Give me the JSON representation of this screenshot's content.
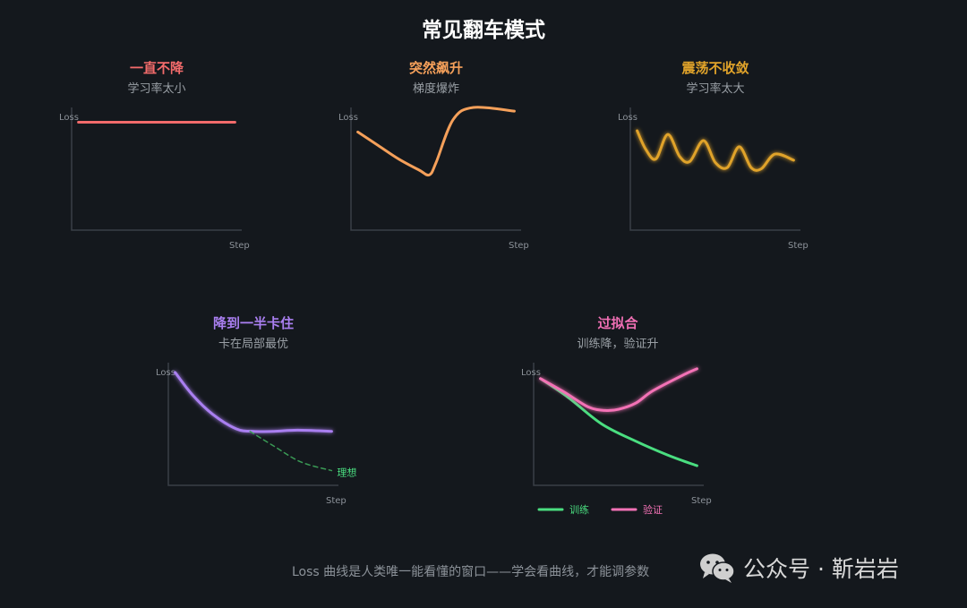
{
  "title": "常见翻车模式",
  "footer": "Loss 曲线是人类唯一能看懂的窗口——学会看曲线，才能调参数",
  "watermark": {
    "icon": "wechat-icon",
    "text": "公众号 · 靳岩岩"
  },
  "axis": {
    "y_label": "Loss",
    "x_label": "Step"
  },
  "chart_data": [
    {
      "type": "line",
      "title": "一直不降",
      "subtitle": "学习率太小",
      "title_color": "#f26b6b",
      "xlabel": "Step",
      "ylabel": "Loss",
      "xlim": [
        0,
        10
      ],
      "ylim": [
        0,
        10
      ],
      "series": [
        {
          "color": "#f26b6b",
          "glow": false,
          "dashed": false,
          "x": [
            0.4,
            9.6
          ],
          "y": [
            8.8,
            8.8
          ]
        }
      ]
    },
    {
      "type": "line",
      "title": "突然飙升",
      "subtitle": "梯度爆炸",
      "title_color": "#f5a05a",
      "xlabel": "Step",
      "ylabel": "Loss",
      "xlim": [
        0,
        10
      ],
      "ylim": [
        0,
        10
      ],
      "series": [
        {
          "color": "#f5a05a",
          "glow": false,
          "dashed": false,
          "x": [
            0.4,
            1.6,
            2.8,
            4.0,
            4.6,
            5.0,
            6.0,
            7.2,
            9.6
          ],
          "y": [
            8.0,
            6.9,
            5.8,
            4.9,
            4.5,
            5.5,
            9.0,
            10.0,
            9.7
          ]
        }
      ]
    },
    {
      "type": "line",
      "title": "震荡不收敛",
      "subtitle": "学习率太大",
      "title_color": "#e0a32a",
      "xlabel": "Step",
      "ylabel": "Loss",
      "xlim": [
        0,
        10
      ],
      "ylim": [
        0,
        10
      ],
      "series": [
        {
          "color": "#e0a32a",
          "glow": true,
          "dashed": false,
          "x": [
            0.4,
            0.9,
            1.5,
            2.2,
            2.9,
            3.5,
            4.3,
            5.0,
            5.7,
            6.4,
            7.1,
            7.7,
            8.5,
            9.6
          ],
          "y": [
            8.1,
            6.6,
            5.8,
            7.8,
            6.0,
            5.6,
            7.3,
            5.5,
            5.1,
            6.8,
            5.1,
            5.0,
            6.2,
            5.7
          ]
        }
      ]
    },
    {
      "type": "line",
      "title": "降到一半卡住",
      "subtitle": "卡在局部最优",
      "title_color": "#a97ff0",
      "xlabel": "Step",
      "ylabel": "Loss",
      "xlim": [
        0,
        10
      ],
      "ylim": [
        0,
        10
      ],
      "annotation": {
        "text": "理想",
        "color": "#4ade80"
      },
      "series": [
        {
          "color": "#a97ff0",
          "glow": true,
          "dashed": false,
          "x": [
            0.4,
            1.4,
            2.6,
            4.0,
            5.0,
            6.2,
            7.6,
            9.6
          ],
          "y": [
            9.2,
            7.4,
            5.8,
            4.6,
            4.4,
            4.4,
            4.5,
            4.4
          ]
        },
        {
          "color": "#3a9a55",
          "glow": false,
          "dashed": true,
          "x": [
            4.8,
            6.2,
            7.8,
            9.6
          ],
          "y": [
            4.4,
            3.2,
            1.9,
            1.2
          ]
        }
      ]
    },
    {
      "type": "line",
      "title": "过拟合",
      "subtitle": "训练降，验证升",
      "title_color": "#f06fb4",
      "xlabel": "Step",
      "ylabel": "Loss",
      "xlim": [
        0,
        10
      ],
      "ylim": [
        0,
        10
      ],
      "legend": [
        {
          "name": "训练",
          "color": "#4ade80"
        },
        {
          "name": "验证",
          "color": "#f472b6"
        }
      ],
      "series": [
        {
          "name": "训练",
          "color": "#4ade80",
          "glow": false,
          "dashed": false,
          "x": [
            0.4,
            2.0,
            4.0,
            6.0,
            8.0,
            9.6
          ],
          "y": [
            8.7,
            7.2,
            5.0,
            3.6,
            2.4,
            1.6
          ]
        },
        {
          "name": "验证",
          "color": "#f472b6",
          "glow": true,
          "dashed": false,
          "x": [
            0.4,
            1.8,
            3.2,
            4.2,
            5.0,
            6.0,
            7.0,
            8.8,
            9.6
          ],
          "y": [
            8.7,
            7.6,
            6.4,
            6.1,
            6.2,
            6.7,
            7.7,
            9.0,
            9.5
          ]
        }
      ]
    }
  ]
}
